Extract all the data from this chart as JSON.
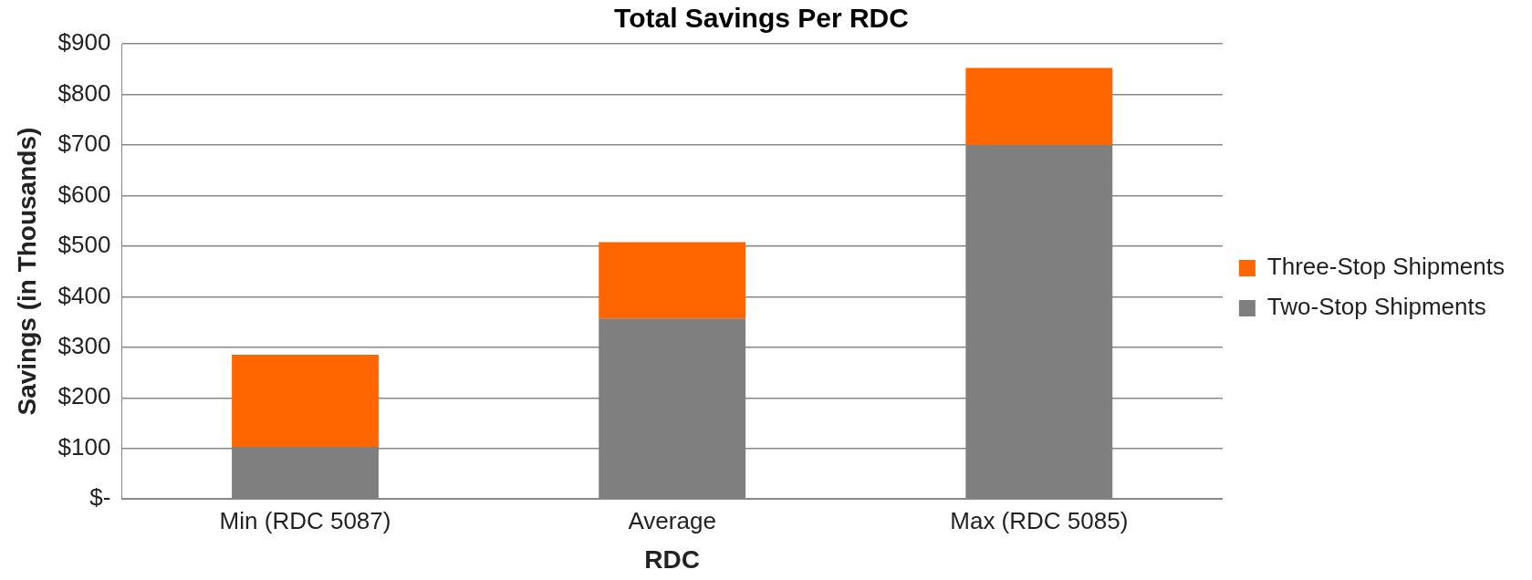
{
  "chart_data": {
    "type": "bar",
    "title": "Total Savings Per RDC",
    "xlabel": "RDC",
    "ylabel": "Savings (in Thousands)",
    "categories": [
      "Min (RDC 5087)",
      "Average",
      "Max (RDC 5085)"
    ],
    "stacked": true,
    "series": [
      {
        "name": "Two-Stop Shipments",
        "color": "#7f7f7f",
        "values": [
          103,
          357,
          700
        ]
      },
      {
        "name": "Three-Stop Shipments",
        "color": "#ff6600",
        "values": [
          182,
          151,
          152
        ]
      }
    ],
    "ylim": [
      0,
      900
    ],
    "yticks": [
      {
        "value": 0,
        "label": "$-"
      },
      {
        "value": 100,
        "label": "$100"
      },
      {
        "value": 200,
        "label": "$200"
      },
      {
        "value": 300,
        "label": "$300"
      },
      {
        "value": 400,
        "label": "$400"
      },
      {
        "value": 500,
        "label": "$500"
      },
      {
        "value": 600,
        "label": "$600"
      },
      {
        "value": 700,
        "label": "$700"
      },
      {
        "value": 800,
        "label": "$800"
      },
      {
        "value": 900,
        "label": "$900"
      }
    ],
    "grid": "y",
    "legend": "right"
  }
}
